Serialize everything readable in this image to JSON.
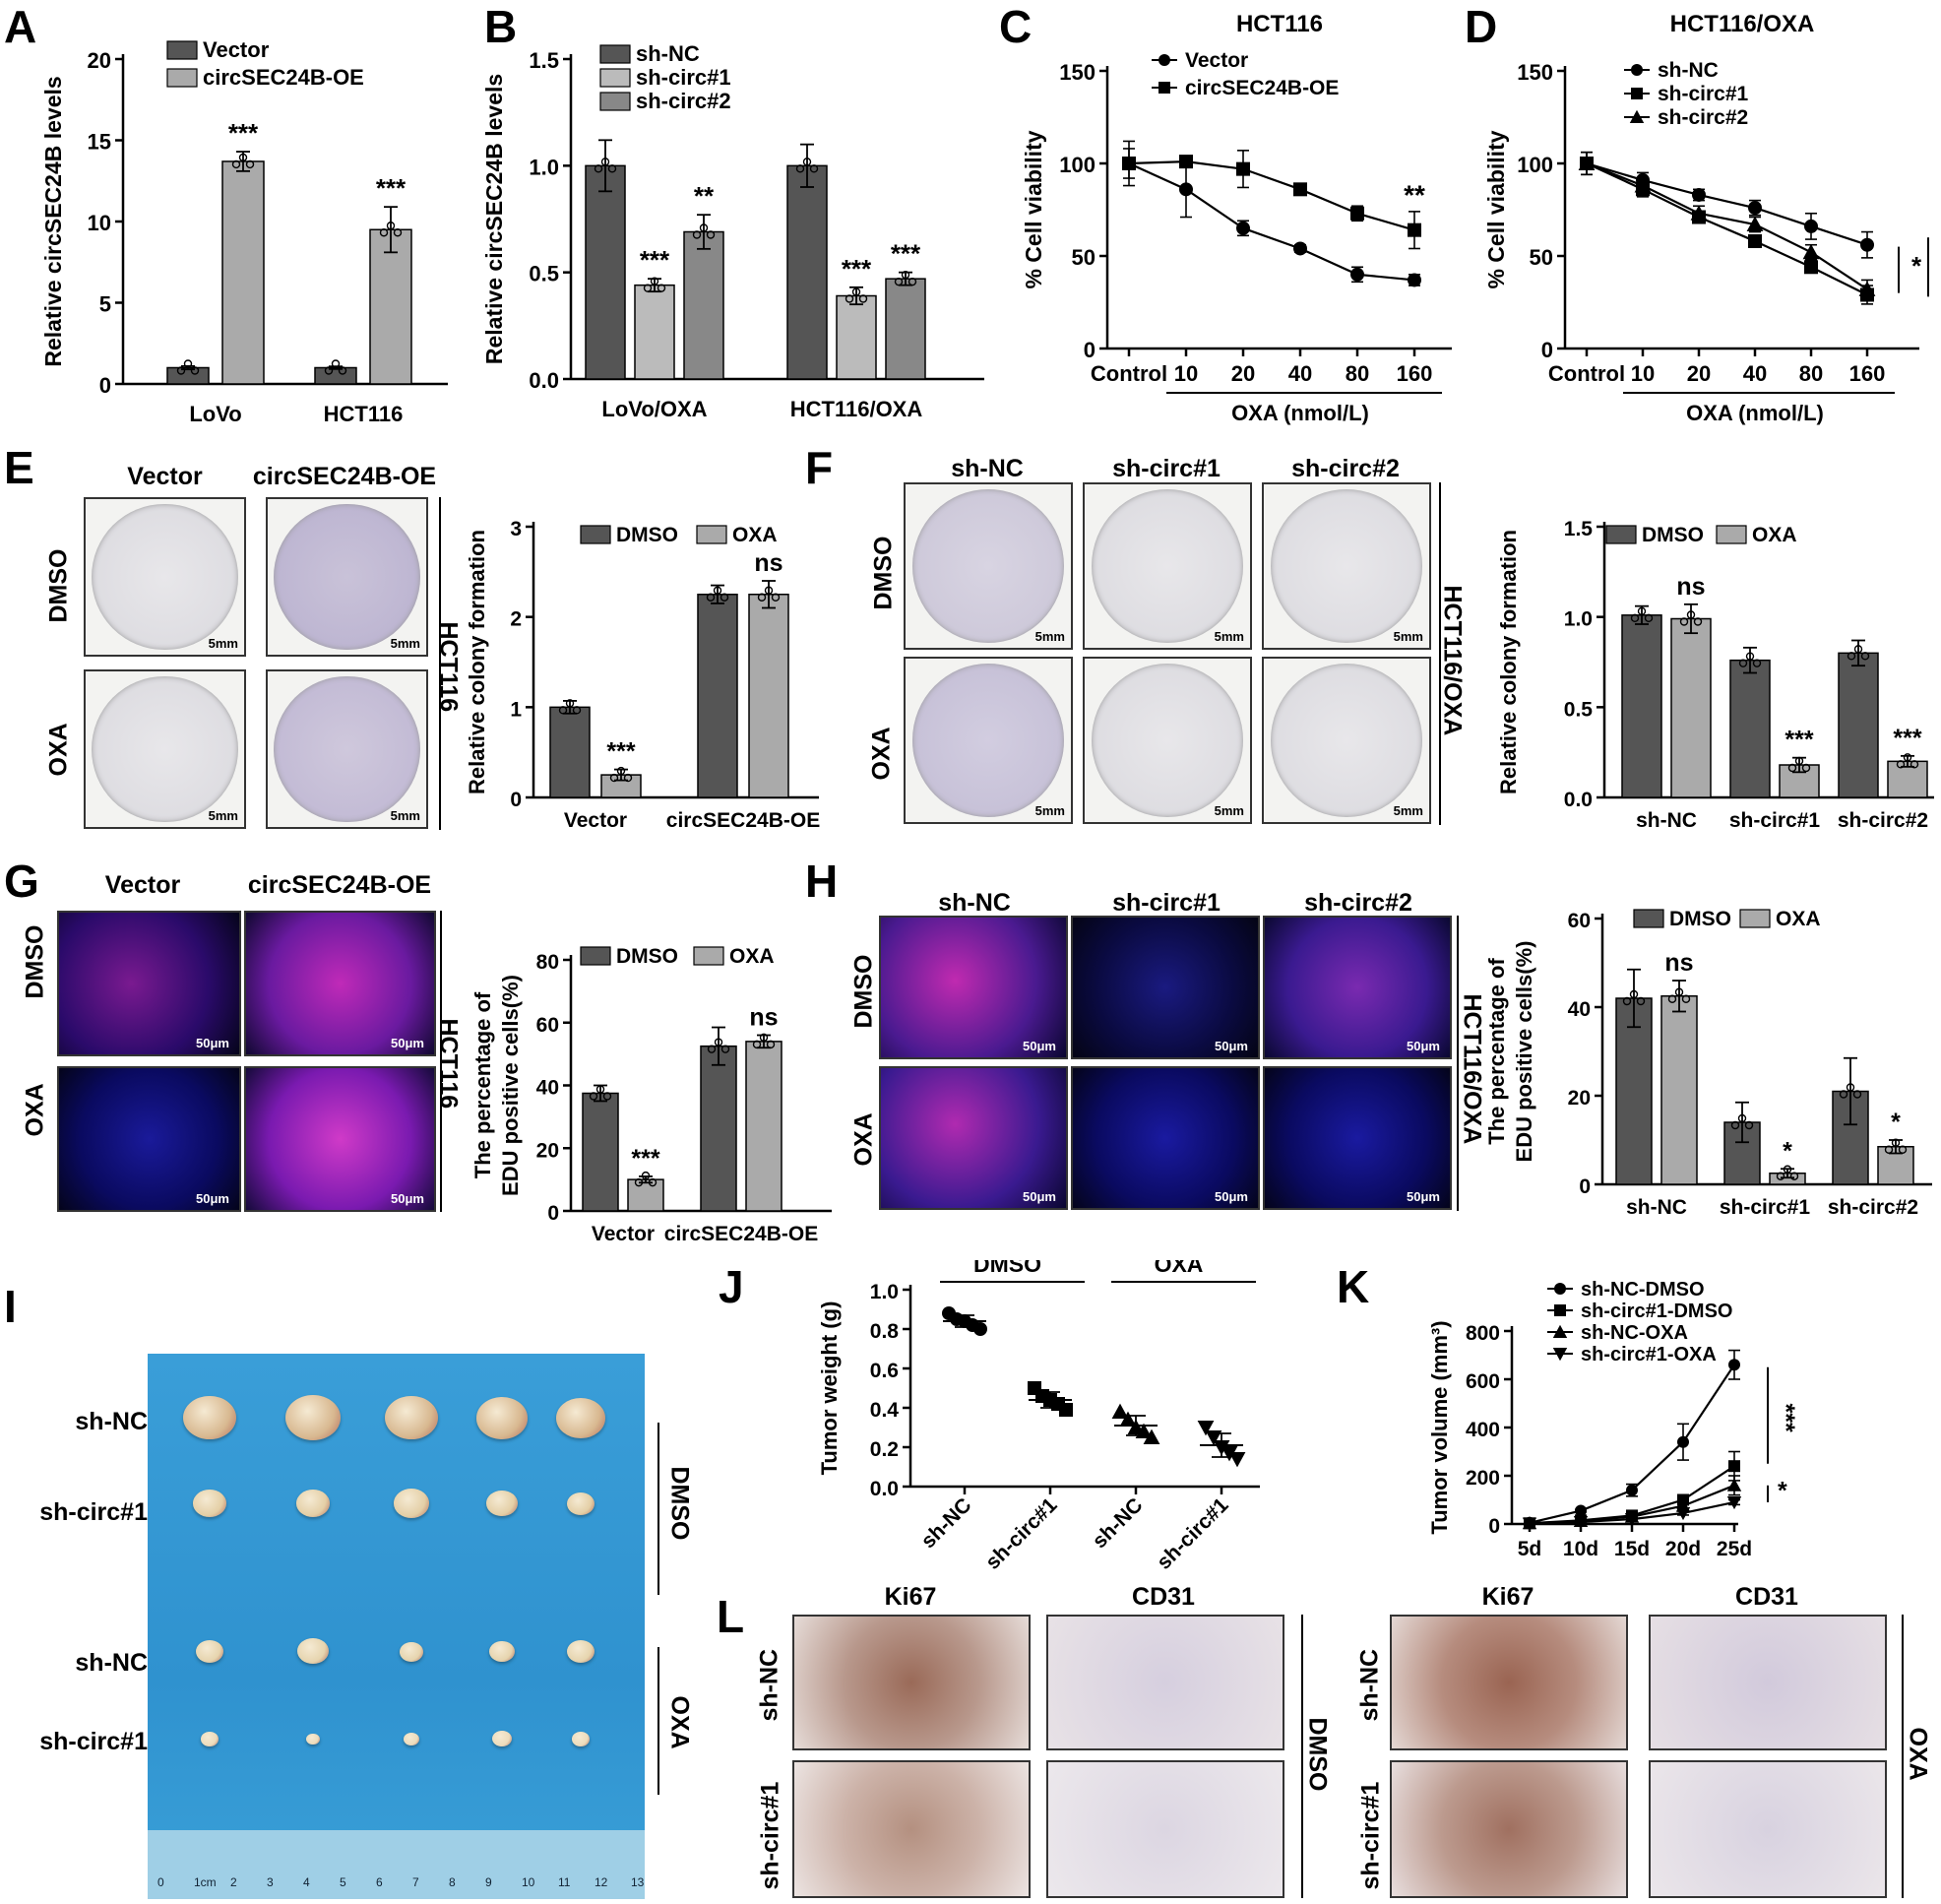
{
  "panels": {
    "A": {
      "label": "A"
    },
    "B": {
      "label": "B"
    },
    "C": {
      "label": "C"
    },
    "D": {
      "label": "D"
    },
    "E": {
      "label": "E"
    },
    "F": {
      "label": "F"
    },
    "G": {
      "label": "G"
    },
    "H": {
      "label": "H"
    },
    "I": {
      "label": "I"
    },
    "J": {
      "label": "J"
    },
    "K": {
      "label": "K"
    },
    "L": {
      "label": "L"
    }
  },
  "images": {
    "E": {
      "cols": [
        "Vector",
        "circSEC24B-OE"
      ],
      "rows": [
        "DMSO",
        "OXA"
      ],
      "side": "HCT116",
      "scale": "5mm"
    },
    "F": {
      "cols": [
        "sh-NC",
        "sh-circ#1",
        "sh-circ#2"
      ],
      "rows": [
        "DMSO",
        "OXA"
      ],
      "side": "HCT116/OXA",
      "scale": "5mm"
    },
    "G": {
      "cols": [
        "Vector",
        "circSEC24B-OE"
      ],
      "rows": [
        "DMSO",
        "OXA"
      ],
      "side": "HCT116",
      "scale": "50μm"
    },
    "H": {
      "cols": [
        "sh-NC",
        "sh-circ#1",
        "sh-circ#2"
      ],
      "rows": [
        "DMSO",
        "OXA"
      ],
      "side": "HCT116/OXA",
      "scale": "50μm"
    },
    "I": {
      "rows": [
        "sh-NC",
        "sh-circ#1",
        "sh-NC",
        "sh-circ#1"
      ],
      "groups": [
        "DMSO",
        "OXA"
      ],
      "ruler": [
        "0",
        "1cm",
        "2",
        "3",
        "4",
        "5",
        "6",
        "7",
        "8",
        "9",
        "10",
        "11",
        "12",
        "13"
      ]
    },
    "L": {
      "cols": [
        "Ki67",
        "CD31",
        "Ki67",
        "CD31"
      ],
      "rows": [
        "sh-NC",
        "sh-circ#1"
      ],
      "groups": [
        "DMSO",
        "OXA"
      ]
    }
  },
  "chart_data": [
    {
      "id": "A",
      "type": "bar",
      "ylabel": "Relative circSEC24B levels",
      "ylim": [
        0,
        20
      ],
      "yticks": [
        "0",
        "5",
        "10",
        "15",
        "20"
      ],
      "categories": [
        "LoVo",
        "HCT116"
      ],
      "series": [
        {
          "name": "Vector",
          "values": [
            1.0,
            1.0
          ],
          "err": [
            0.1,
            0.08
          ],
          "color": "#555555"
        },
        {
          "name": "circSEC24B-OE",
          "values": [
            13.7,
            9.5
          ],
          "err": [
            0.6,
            1.4
          ],
          "color": "#aaaaaa"
        }
      ],
      "sig": [
        {
          "cat": 0,
          "series": 1,
          "text": "***"
        },
        {
          "cat": 1,
          "series": 1,
          "text": "***"
        }
      ]
    },
    {
      "id": "B",
      "type": "bar",
      "ylabel": "Relative circSEC24B levels",
      "ylim": [
        0,
        1.5
      ],
      "yticks": [
        "0.0",
        "0.5",
        "1.0",
        "1.5"
      ],
      "categories": [
        "LoVo/OXA",
        "HCT116/OXA"
      ],
      "series": [
        {
          "name": "sh-NC",
          "values": [
            1.0,
            1.0
          ],
          "err": [
            0.12,
            0.1
          ],
          "color": "#555555"
        },
        {
          "name": "sh-circ#1",
          "values": [
            0.44,
            0.39
          ],
          "err": [
            0.03,
            0.04
          ],
          "color": "#bbbbbb"
        },
        {
          "name": "sh-circ#2",
          "values": [
            0.69,
            0.47
          ],
          "err": [
            0.08,
            0.03
          ],
          "color": "#888888"
        }
      ],
      "sig": [
        {
          "cat": 0,
          "series": 1,
          "text": "***"
        },
        {
          "cat": 0,
          "series": 2,
          "text": "**"
        },
        {
          "cat": 1,
          "series": 1,
          "text": "***"
        },
        {
          "cat": 1,
          "series": 2,
          "text": "***"
        }
      ]
    },
    {
      "id": "C",
      "type": "line",
      "title": "HCT116",
      "ylabel": "% Cell viability",
      "xlabel": "OXA (nmol/L)",
      "ylim": [
        0,
        150
      ],
      "yticks": [
        "0",
        "50",
        "100",
        "150"
      ],
      "x": [
        "Control",
        "10",
        "20",
        "40",
        "80",
        "160"
      ],
      "series": [
        {
          "name": "Vector",
          "marker": "circle",
          "values": [
            100,
            86,
            65,
            54,
            40,
            37
          ],
          "err": [
            8,
            15,
            4,
            2,
            4,
            3
          ]
        },
        {
          "name": "circSEC24B-OE",
          "marker": "square",
          "values": [
            100,
            101,
            97,
            86,
            73,
            64
          ],
          "err": [
            12,
            3,
            10,
            3,
            4,
            10
          ]
        }
      ],
      "sig": [
        "**"
      ]
    },
    {
      "id": "D",
      "type": "line",
      "title": "HCT116/OXA",
      "ylabel": "% Cell viability",
      "xlabel": "OXA (nmol/L)",
      "ylim": [
        0,
        150
      ],
      "yticks": [
        "0",
        "50",
        "100",
        "150"
      ],
      "x": [
        "Control",
        "10",
        "20",
        "40",
        "80",
        "160"
      ],
      "series": [
        {
          "name": "sh-NC",
          "marker": "circle",
          "values": [
            100,
            91,
            83,
            76,
            66,
            56
          ],
          "err": [
            6,
            4,
            3,
            4,
            7,
            7
          ]
        },
        {
          "name": "sh-circ#1",
          "marker": "square",
          "values": [
            100,
            86,
            71,
            58,
            44,
            29
          ],
          "err": [
            6,
            4,
            3,
            3,
            3,
            5
          ]
        },
        {
          "name": "sh-circ#2",
          "marker": "triangle",
          "values": [
            100,
            88,
            73,
            67,
            52,
            32
          ],
          "err": [
            6,
            4,
            4,
            4,
            4,
            5
          ]
        }
      ],
      "sig": [
        "*",
        "**"
      ]
    },
    {
      "id": "E",
      "type": "bar",
      "ylabel": "Relative colony formation",
      "ylim": [
        0,
        3
      ],
      "yticks": [
        "0",
        "1",
        "2",
        "3"
      ],
      "categories": [
        "Vector",
        "circSEC24B-OE"
      ],
      "series": [
        {
          "name": "DMSO",
          "values": [
            1.0,
            2.25
          ],
          "err": [
            0.07,
            0.1
          ],
          "color": "#555555"
        },
        {
          "name": "OXA",
          "values": [
            0.25,
            2.25
          ],
          "err": [
            0.06,
            0.15
          ],
          "color": "#aaaaaa"
        }
      ],
      "sig": [
        {
          "cat": 0,
          "series": 1,
          "text": "***"
        },
        {
          "cat": 1,
          "series": 1,
          "text": "ns"
        }
      ]
    },
    {
      "id": "F",
      "type": "bar",
      "ylabel": "Relative colony formation",
      "ylim": [
        0,
        1.5
      ],
      "yticks": [
        "0.0",
        "0.5",
        "1.0",
        "1.5"
      ],
      "categories": [
        "sh-NC",
        "sh-circ#1",
        "sh-circ#2"
      ],
      "series": [
        {
          "name": "DMSO",
          "values": [
            1.01,
            0.76,
            0.8
          ],
          "err": [
            0.05,
            0.07,
            0.07
          ],
          "color": "#555555"
        },
        {
          "name": "OXA",
          "values": [
            0.99,
            0.18,
            0.2
          ],
          "err": [
            0.08,
            0.04,
            0.03
          ],
          "color": "#aaaaaa"
        }
      ],
      "sig": [
        {
          "cat": 0,
          "series": 1,
          "text": "ns"
        },
        {
          "cat": 1,
          "series": 1,
          "text": "***"
        },
        {
          "cat": 2,
          "series": 1,
          "text": "***"
        }
      ]
    },
    {
      "id": "G",
      "type": "bar",
      "ylabel": "The percentage of EDU positive cells(%)",
      "ylim": [
        0,
        80
      ],
      "yticks": [
        "0",
        "20",
        "40",
        "60",
        "80"
      ],
      "categories": [
        "Vector",
        "circSEC24B-OE"
      ],
      "series": [
        {
          "name": "DMSO",
          "values": [
            37.5,
            52.5
          ],
          "err": [
            2.5,
            6
          ],
          "color": "#555555"
        },
        {
          "name": "OXA",
          "values": [
            10,
            54
          ],
          "err": [
            1,
            2
          ],
          "color": "#aaaaaa"
        }
      ],
      "sig": [
        {
          "cat": 0,
          "series": 1,
          "text": "***"
        },
        {
          "cat": 1,
          "series": 1,
          "text": "ns"
        }
      ]
    },
    {
      "id": "H",
      "type": "bar",
      "ylabel": "The percentage of EDU positive cells(%)",
      "ylim": [
        0,
        60
      ],
      "yticks": [
        "0",
        "20",
        "40",
        "60"
      ],
      "categories": [
        "sh-NC",
        "sh-circ#1",
        "sh-circ#2"
      ],
      "series": [
        {
          "name": "DMSO",
          "values": [
            42,
            14,
            21
          ],
          "err": [
            6.5,
            4.5,
            7.5
          ],
          "color": "#555555"
        },
        {
          "name": "OXA",
          "values": [
            42.5,
            2.5,
            8.5
          ],
          "err": [
            3.5,
            1,
            1.5
          ],
          "color": "#aaaaaa"
        }
      ],
      "sig": [
        {
          "cat": 0,
          "series": 1,
          "text": "ns"
        },
        {
          "cat": 1,
          "series": 1,
          "text": "*"
        },
        {
          "cat": 2,
          "series": 1,
          "text": "*"
        }
      ]
    },
    {
      "id": "J",
      "type": "scatter",
      "ylabel": "Tumor weight (g)",
      "ylim": [
        0,
        1.0
      ],
      "yticks": [
        "0.0",
        "0.2",
        "0.4",
        "0.6",
        "0.8",
        "1.0"
      ],
      "categories": [
        "sh-NC",
        "sh-circ#1",
        "sh-NC",
        "sh-circ#1"
      ],
      "groups": [
        "DMSO",
        "OXA"
      ],
      "series": [
        {
          "name": "sh-NC",
          "marker": "circle",
          "points": [
            0.88,
            0.85,
            0.84,
            0.82,
            0.8
          ],
          "mean": 0.84,
          "sd": 0.03
        },
        {
          "name": "sh-circ#1",
          "marker": "square",
          "points": [
            0.5,
            0.46,
            0.44,
            0.42,
            0.39
          ],
          "mean": 0.44,
          "sd": 0.04
        },
        {
          "name": "sh-NC",
          "marker": "triangle",
          "points": [
            0.38,
            0.34,
            0.3,
            0.28,
            0.25
          ],
          "mean": 0.31,
          "sd": 0.05
        },
        {
          "name": "sh-circ#1",
          "marker": "triangle-down",
          "points": [
            0.3,
            0.25,
            0.2,
            0.17,
            0.14
          ],
          "mean": 0.21,
          "sd": 0.06
        }
      ]
    },
    {
      "id": "K",
      "type": "line",
      "ylabel": "Tumor volume (mm³)",
      "ylim": [
        0,
        800
      ],
      "yticks": [
        "0",
        "200",
        "400",
        "600",
        "800"
      ],
      "x": [
        "5d",
        "10d",
        "15d",
        "20d",
        "25d"
      ],
      "series": [
        {
          "name": "sh-NC-DMSO",
          "marker": "circle",
          "values": [
            5,
            55,
            140,
            340,
            660
          ],
          "err": [
            2,
            5,
            25,
            75,
            60
          ]
        },
        {
          "name": "sh-circ#1-DMSO",
          "marker": "square",
          "values": [
            3,
            15,
            35,
            100,
            240
          ],
          "err": [
            1,
            3,
            8,
            20,
            60
          ]
        },
        {
          "name": "sh-NC-OXA",
          "marker": "triangle",
          "values": [
            3,
            12,
            30,
            75,
            160
          ],
          "err": [
            1,
            3,
            6,
            15,
            40
          ]
        },
        {
          "name": "sh-circ#1-OXA",
          "marker": "triangle-down",
          "values": [
            2,
            8,
            20,
            45,
            90
          ],
          "err": [
            1,
            2,
            4,
            8,
            10
          ]
        }
      ],
      "sig": [
        "***",
        "*"
      ]
    }
  ]
}
